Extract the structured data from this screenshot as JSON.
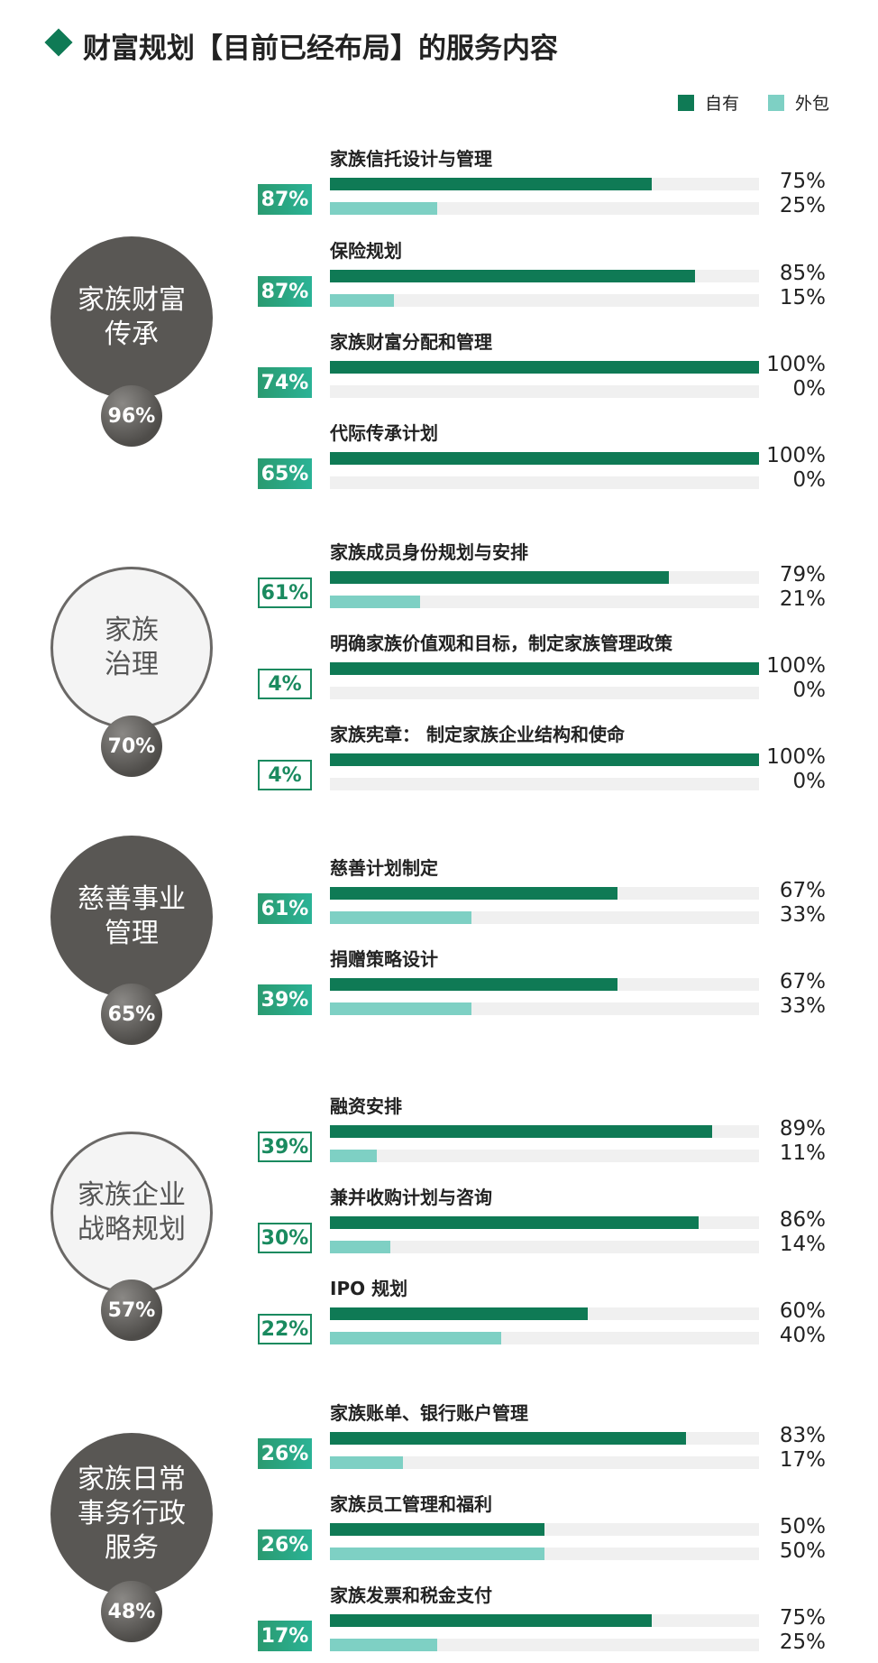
{
  "title": "财富规划【目前已经布局】的服务内容",
  "legend": {
    "own": "自有",
    "outsourced": "外包"
  },
  "colors": {
    "own": "#0f7a55",
    "outsourced": "#7ed0c4",
    "track": "#f0f0f0",
    "circle_dark": "#595754"
  },
  "groups": [
    {
      "name_lines": [
        "家族财富",
        "传承"
      ],
      "style": "dark",
      "share": "96%",
      "items": [
        {
          "label": "家族信托设计与管理",
          "share": "87%",
          "badge": "solid",
          "own": "75%",
          "outsourced": "25%"
        },
        {
          "label": "保险规划",
          "share": "87%",
          "badge": "solid",
          "own": "85%",
          "outsourced": "15%"
        },
        {
          "label": "家族财富分配和管理",
          "share": "74%",
          "badge": "solid",
          "own": "100%",
          "outsourced": "0%"
        },
        {
          "label": "代际传承计划",
          "share": "65%",
          "badge": "solid",
          "own": "100%",
          "outsourced": "0%"
        }
      ]
    },
    {
      "name_lines": [
        "家族",
        "治理"
      ],
      "style": "light",
      "share": "70%",
      "items": [
        {
          "label": "家族成员身份规划与安排",
          "share": "61%",
          "badge": "outline",
          "own": "79%",
          "outsourced": "21%"
        },
        {
          "label": "明确家族价值观和目标，制定家族管理政策",
          "share": "4%",
          "badge": "outline",
          "own": "100%",
          "outsourced": "0%"
        },
        {
          "label": "家族宪章：  制定家族企业结构和使命",
          "share": "4%",
          "badge": "outline",
          "own": "100%",
          "outsourced": "0%"
        }
      ]
    },
    {
      "name_lines": [
        "慈善事业",
        "管理"
      ],
      "style": "dark",
      "share": "65%",
      "items": [
        {
          "label": "慈善计划制定",
          "share": "61%",
          "badge": "solid",
          "own": "67%",
          "outsourced": "33%"
        },
        {
          "label": "捐赠策略设计",
          "share": "39%",
          "badge": "solid",
          "own": "67%",
          "outsourced": "33%"
        }
      ]
    },
    {
      "name_lines": [
        "家族企业",
        "战略规划"
      ],
      "style": "light",
      "share": "57%",
      "items": [
        {
          "label": "融资安排",
          "share": "39%",
          "badge": "outline",
          "own": "89%",
          "outsourced": "11%"
        },
        {
          "label": "兼并收购计划与咨询",
          "share": "30%",
          "badge": "outline",
          "own": "86%",
          "outsourced": "14%"
        },
        {
          "label": "IPO 规划",
          "share": "22%",
          "badge": "outline",
          "own": "60%",
          "outsourced": "40%"
        }
      ]
    },
    {
      "name_lines": [
        "家族日常",
        "事务行政",
        "服务"
      ],
      "style": "dark",
      "share": "48%",
      "items": [
        {
          "label": "家族账单、银行账户管理",
          "share": "26%",
          "badge": "solid",
          "own": "83%",
          "outsourced": "17%"
        },
        {
          "label": "家族员工管理和福利",
          "share": "26%",
          "badge": "solid",
          "own": "50%",
          "outsourced": "50%"
        },
        {
          "label": "家族发票和税金支付",
          "share": "17%",
          "badge": "solid",
          "own": "75%",
          "outsourced": "25%"
        }
      ]
    }
  ],
  "chart_data": {
    "type": "bar",
    "orientation": "horizontal",
    "title": "财富规划【目前已经布局】的服务内容",
    "legend_position": "top-right",
    "series": [
      {
        "name": "自有"
      },
      {
        "name": "外包"
      }
    ],
    "xlim": [
      0,
      100
    ],
    "categories": [
      {
        "group": "家族财富传承",
        "group_share": 96,
        "items": [
          {
            "name": "家族信托设计与管理",
            "share": 87,
            "own": 75,
            "outsourced": 25
          },
          {
            "name": "保险规划",
            "share": 87,
            "own": 85,
            "outsourced": 15
          },
          {
            "name": "家族财富分配和管理",
            "share": 74,
            "own": 100,
            "outsourced": 0
          },
          {
            "name": "代际传承计划",
            "share": 65,
            "own": 100,
            "outsourced": 0
          }
        ]
      },
      {
        "group": "家族治理",
        "group_share": 70,
        "items": [
          {
            "name": "家族成员身份规划与安排",
            "share": 61,
            "own": 79,
            "outsourced": 21
          },
          {
            "name": "明确家族价值观和目标，制定家族管理政策",
            "share": 4,
            "own": 100,
            "outsourced": 0
          },
          {
            "name": "家族宪章：  制定家族企业结构和使命",
            "share": 4,
            "own": 100,
            "outsourced": 0
          }
        ]
      },
      {
        "group": "慈善事业管理",
        "group_share": 65,
        "items": [
          {
            "name": "慈善计划制定",
            "share": 61,
            "own": 67,
            "outsourced": 33
          },
          {
            "name": "捐赠策略设计",
            "share": 39,
            "own": 67,
            "outsourced": 33
          }
        ]
      },
      {
        "group": "家族企业战略规划",
        "group_share": 57,
        "items": [
          {
            "name": "融资安排",
            "share": 39,
            "own": 89,
            "outsourced": 11
          },
          {
            "name": "兼并收购计划与咨询",
            "share": 30,
            "own": 86,
            "outsourced": 14
          },
          {
            "name": "IPO 规划",
            "share": 22,
            "own": 60,
            "outsourced": 40
          }
        ]
      },
      {
        "group": "家族日常事务行政服务",
        "group_share": 48,
        "items": [
          {
            "name": "家族账单、银行账户管理",
            "share": 26,
            "own": 83,
            "outsourced": 17
          },
          {
            "name": "家族员工管理和福利",
            "share": 26,
            "own": 50,
            "outsourced": 50
          },
          {
            "name": "家族发票和税金支付",
            "share": 17,
            "own": 75,
            "outsourced": 25
          }
        ]
      }
    ]
  }
}
